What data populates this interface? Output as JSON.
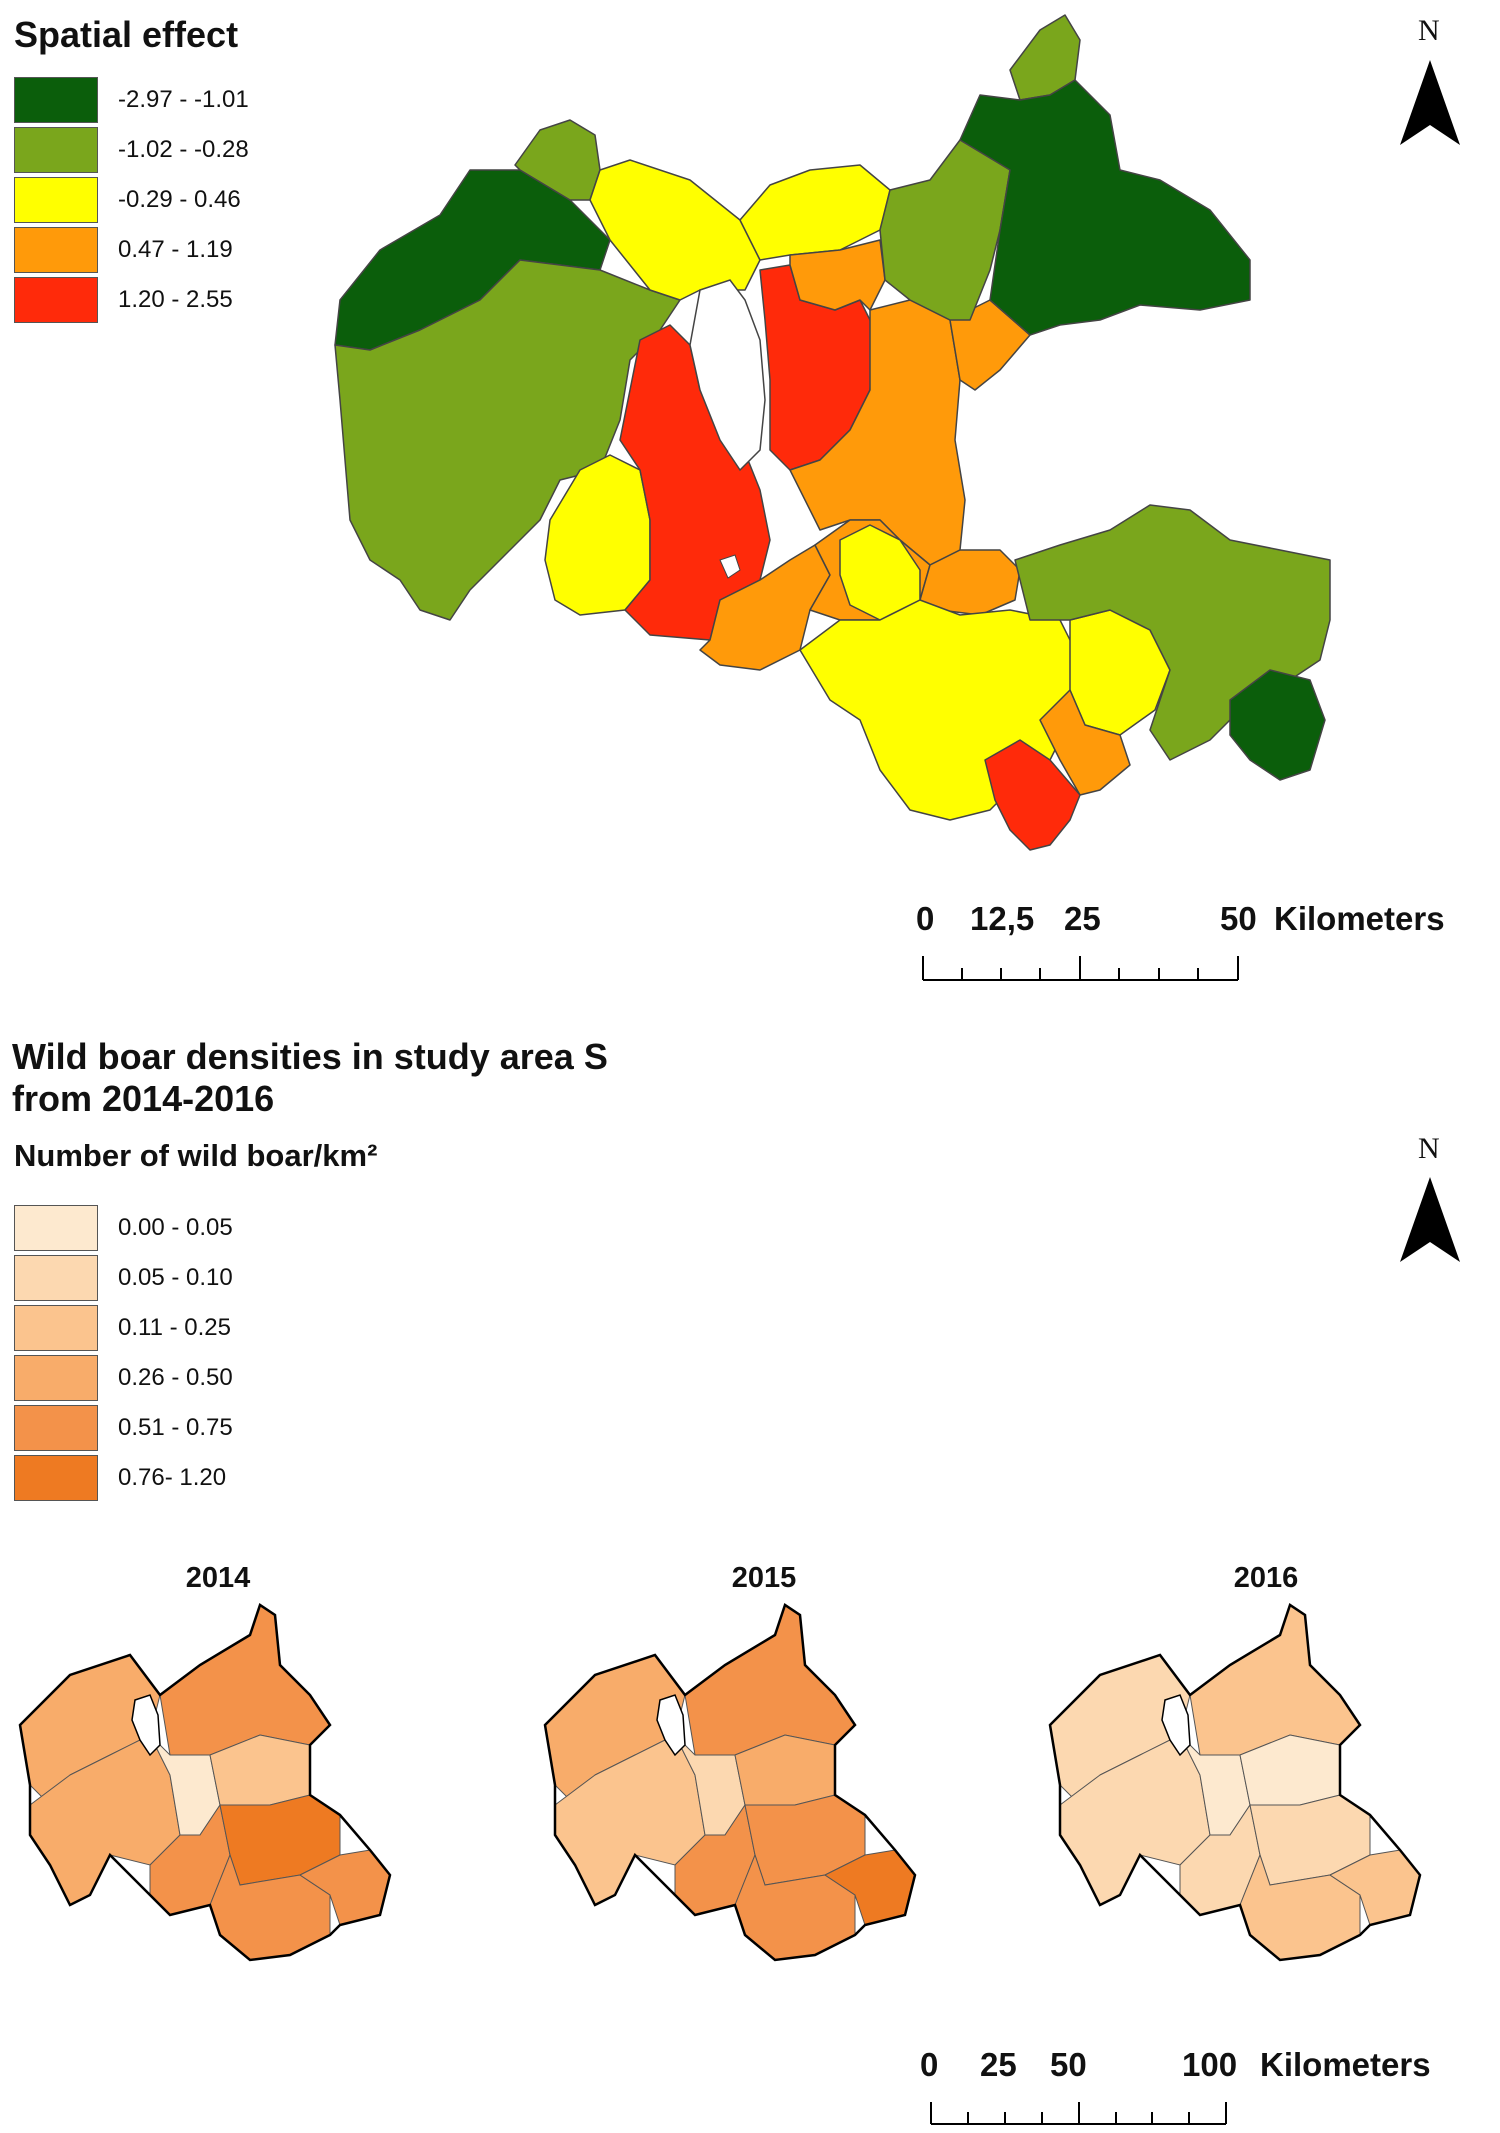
{
  "spatial_effect": {
    "title": "Spatial effect",
    "legend": [
      {
        "label": "-2.97 - -1.01",
        "color": "#0b5e0b"
      },
      {
        "label": "-1.02 - -0.28",
        "color": "#7aa61c"
      },
      {
        "label": "-0.29 - 0.46",
        "color": "#ffff00"
      },
      {
        "label": "0.47 - 1.19",
        "color": "#ff9a0a"
      },
      {
        "label": "1.20 - 2.55",
        "color": "#ff2a0a"
      }
    ],
    "north": "N",
    "scale": {
      "ticks": [
        "0",
        "12,5",
        "25",
        "50"
      ],
      "unit": "Kilometers"
    }
  },
  "densities": {
    "title_line1": "Wild boar densities in study area S",
    "title_line2": "from 2014-2016",
    "legend_title": "Number of wild boar/km²",
    "legend": [
      {
        "label": "0.00 - 0.05",
        "color": "#fde9cf"
      },
      {
        "label": "0.05 - 0.10",
        "color": "#fcd8b0"
      },
      {
        "label": "0.11 - 0.25",
        "color": "#fbc48e"
      },
      {
        "label": "0.26 - 0.50",
        "color": "#f8ac6a"
      },
      {
        "label": "0.51 - 0.75",
        "color": "#f3924a"
      },
      {
        "label": "0.76- 1.20",
        "color": "#ee7a22"
      }
    ],
    "north": "N",
    "years": [
      "2014",
      "2015",
      "2016"
    ],
    "scale": {
      "ticks": [
        "0",
        "25",
        "50",
        "100"
      ],
      "unit": "Kilometers"
    }
  }
}
